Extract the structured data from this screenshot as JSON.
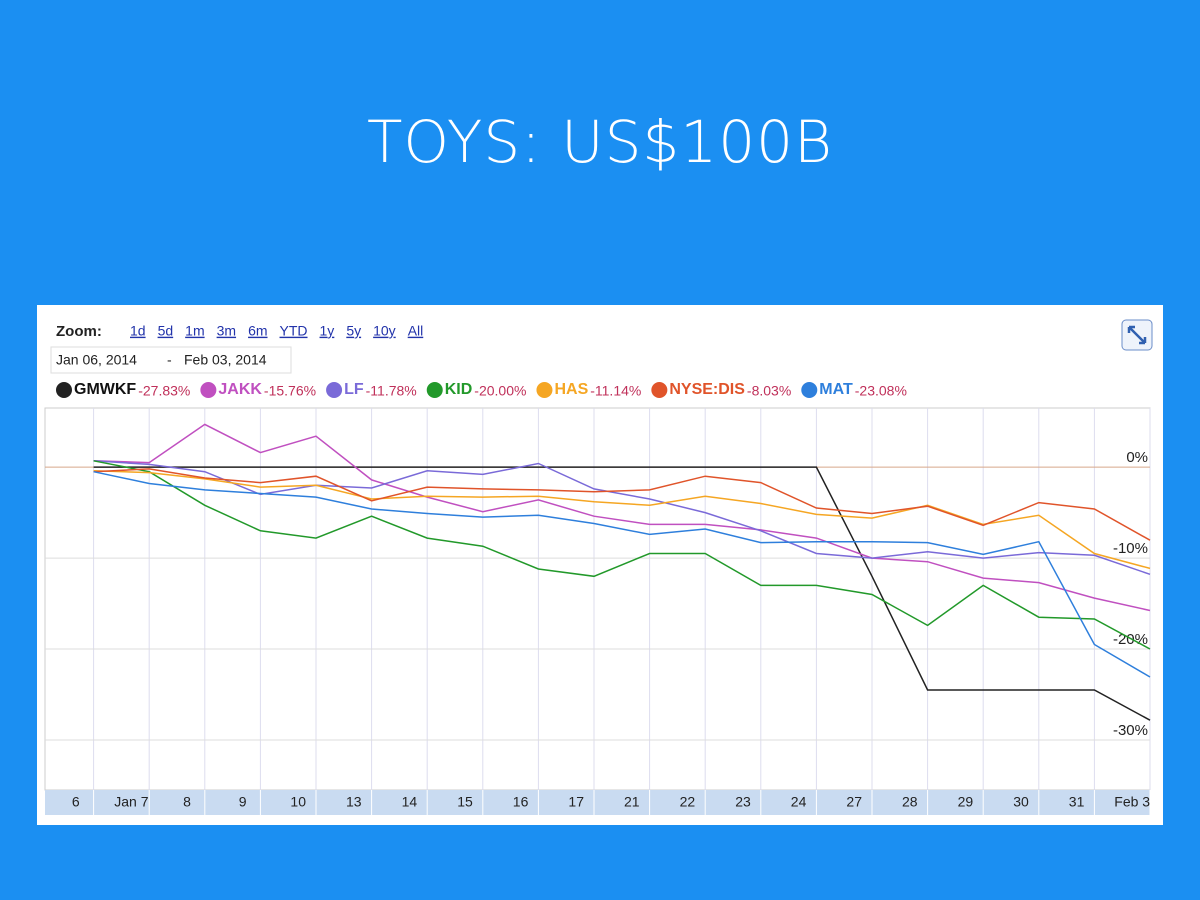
{
  "slide_title": "TOYS: US$100B",
  "chart_data": {
    "type": "line",
    "zoom_label": "Zoom:",
    "zoom_options": [
      "1d",
      "5d",
      "1m",
      "3m",
      "6m",
      "YTD",
      "1y",
      "5y",
      "10y",
      "All"
    ],
    "date_from": "Jan 06, 2014",
    "date_separator": "-",
    "date_to": "Feb 03, 2014",
    "categories": [
      "6",
      "Jan 7",
      "8",
      "9",
      "10",
      "13",
      "14",
      "15",
      "16",
      "17",
      "21",
      "22",
      "23",
      "24",
      "27",
      "28",
      "29",
      "30",
      "31",
      "Feb 3"
    ],
    "series": [
      {
        "name": "GMWKF",
        "color": "#222222",
        "change_label": "-27.83%",
        "values": [
          0,
          0,
          0,
          0,
          0,
          0,
          0,
          0,
          0,
          0,
          0,
          0,
          0,
          0,
          -12,
          -24.5,
          -24.5,
          -24.5,
          -24.5,
          -27.83
        ]
      },
      {
        "name": "JAKK",
        "color": "#c050c0",
        "change_label": "-15.76%",
        "values": [
          0.7,
          0.5,
          4.7,
          1.6,
          3.4,
          -1.4,
          -3.3,
          -4.9,
          -3.6,
          -5.4,
          -6.3,
          -6.3,
          -6.9,
          -7.8,
          -10,
          -10.4,
          -12.2,
          -12.7,
          -14.4,
          -15.76
        ]
      },
      {
        "name": "LF",
        "color": "#7a6ad8",
        "change_label": "-11.78%",
        "values": [
          0.7,
          0.3,
          -0.5,
          -3,
          -2,
          -2.3,
          -0.4,
          -0.8,
          0.4,
          -2.4,
          -3.5,
          -5,
          -7,
          -9.5,
          -10,
          -9.3,
          -10,
          -9.4,
          -9.7,
          -11.78
        ]
      },
      {
        "name": "KID",
        "color": "#22992a",
        "change_label": "-20.00%",
        "values": [
          0.7,
          -0.5,
          -4.2,
          -7,
          -7.8,
          -5.4,
          -7.8,
          -8.7,
          -11.2,
          -12,
          -9.5,
          -9.5,
          -13,
          -13,
          -14,
          -17.4,
          -13,
          -16.5,
          -16.7,
          -20
        ]
      },
      {
        "name": "HAS",
        "color": "#f5a623",
        "change_label": "-11.14%",
        "values": [
          -0.4,
          -0.6,
          -1.3,
          -2.2,
          -2,
          -3.5,
          -3.2,
          -3.3,
          -3.2,
          -3.8,
          -4.2,
          -3.2,
          -4,
          -5.2,
          -5.6,
          -4.2,
          -6.3,
          -5.3,
          -9.5,
          -11.14
        ]
      },
      {
        "name": "NYSE:DIS",
        "color": "#e0542a",
        "change_label": "-8.03%",
        "values": [
          -0.5,
          -0.2,
          -1.2,
          -1.7,
          -1,
          -3.7,
          -2.2,
          -2.4,
          -2.5,
          -2.7,
          -2.5,
          -1,
          -1.7,
          -4.5,
          -5.1,
          -4.3,
          -6.4,
          -3.9,
          -4.6,
          -8.03
        ]
      },
      {
        "name": "MAT",
        "color": "#2e7fdc",
        "change_label": "-23.08%",
        "values": [
          -0.5,
          -1.8,
          -2.5,
          -2.9,
          -3.3,
          -4.6,
          -5.1,
          -5.5,
          -5.3,
          -6.2,
          -7.4,
          -6.8,
          -8.3,
          -8.2,
          -8.2,
          -8.3,
          -9.6,
          -8.2,
          -19.5,
          -23.08
        ]
      }
    ],
    "ylim": [
      -35.5,
      6.5
    ],
    "yticks": [
      {
        "value": 0,
        "label": "0%"
      },
      {
        "value": -10,
        "label": "-10%"
      },
      {
        "value": -20,
        "label": "-20%"
      },
      {
        "value": -30,
        "label": "-30%"
      }
    ],
    "grid": true
  }
}
